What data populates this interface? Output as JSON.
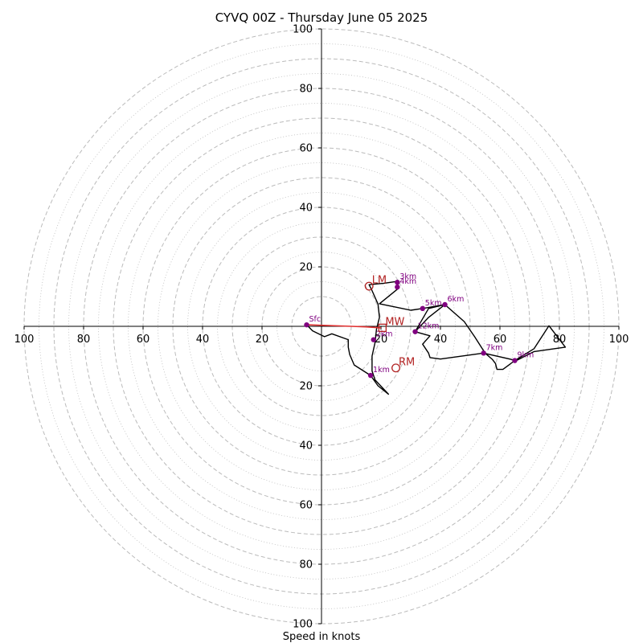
{
  "chart_data": {
    "type": "scatter",
    "title": "CYVQ 00Z - Thursday June 05 2025",
    "xlabel": "Speed in knots",
    "xlim": [
      -100,
      100
    ],
    "ylim": [
      -100,
      100
    ],
    "grid": true,
    "ticks": {
      "x": [
        {
          "v": -100,
          "label": "100"
        },
        {
          "v": -80,
          "label": "80"
        },
        {
          "v": -60,
          "label": "60"
        },
        {
          "v": -40,
          "label": "40"
        },
        {
          "v": -20,
          "label": "20"
        },
        {
          "v": 20,
          "label": "20"
        },
        {
          "v": 40,
          "label": "40"
        },
        {
          "v": 60,
          "label": "60"
        },
        {
          "v": 80,
          "label": "80"
        },
        {
          "v": 100,
          "label": "100"
        }
      ],
      "y": [
        {
          "v": 100,
          "label": "100"
        },
        {
          "v": 80,
          "label": "80"
        },
        {
          "v": 60,
          "label": "60"
        },
        {
          "v": 40,
          "label": "40"
        },
        {
          "v": 20,
          "label": "20"
        },
        {
          "v": -20,
          "label": "20"
        },
        {
          "v": -40,
          "label": "40"
        },
        {
          "v": -60,
          "label": "60"
        },
        {
          "v": -80,
          "label": "80"
        },
        {
          "v": -100,
          "label": "100"
        }
      ]
    },
    "rings_dashed": [
      10,
      20,
      30,
      40,
      50,
      60,
      70,
      80,
      90,
      100
    ],
    "rings_dotted": [
      15,
      25,
      35,
      45,
      55,
      65,
      75,
      85,
      95
    ],
    "series": [
      {
        "color": "#000000",
        "points": [
          [
            -5,
            0.5
          ],
          [
            -3,
            -1.5
          ],
          [
            1,
            -3.5
          ],
          [
            3.5,
            -2.5
          ],
          [
            9,
            -4.5
          ],
          [
            9,
            -7
          ],
          [
            9.5,
            -9.5
          ],
          [
            11,
            -13
          ],
          [
            16.5,
            -16.5
          ],
          [
            19,
            -20
          ],
          [
            22.5,
            -22.8
          ],
          [
            18,
            -18
          ],
          [
            17,
            -15
          ],
          [
            17,
            -10
          ],
          [
            18,
            -5.5
          ],
          [
            18.5,
            -1
          ],
          [
            19.5,
            3
          ],
          [
            19,
            7.5
          ],
          [
            17,
            12
          ],
          [
            16,
            14
          ],
          [
            21,
            14.5
          ],
          [
            26,
            15.2
          ],
          [
            25.6,
            14.2
          ],
          [
            25.6,
            13.2
          ],
          [
            25.5,
            12.5
          ],
          [
            19.5,
            7.6
          ],
          [
            30,
            5.4
          ],
          [
            34,
            6
          ],
          [
            41.5,
            7.3
          ],
          [
            36,
            3
          ],
          [
            31.5,
            -1.8
          ],
          [
            36,
            6
          ],
          [
            41.5,
            7.3
          ],
          [
            48,
            1.6
          ],
          [
            51.5,
            -3.5
          ],
          [
            55,
            -9
          ],
          [
            57.5,
            -11.2
          ],
          [
            58.5,
            -12.5
          ],
          [
            59,
            -14.5
          ],
          [
            61,
            -14.5
          ],
          [
            65,
            -11.5
          ],
          [
            71.5,
            -7.5
          ],
          [
            76.5,
            0.2
          ],
          [
            82,
            -7
          ],
          [
            71.5,
            -8.5
          ],
          [
            65.5,
            -11.5
          ],
          [
            54.5,
            -9
          ],
          [
            40,
            -11
          ],
          [
            36.5,
            -10.5
          ],
          [
            36,
            -9
          ],
          [
            34,
            -6
          ],
          [
            36.5,
            -3.2
          ],
          [
            31.5,
            -1.8
          ]
        ]
      },
      {
        "color": "#e03030",
        "points": [
          [
            -5,
            0.5
          ],
          [
            10,
            0
          ],
          [
            15,
            -0.2
          ],
          [
            20,
            -0.5
          ]
        ]
      }
    ],
    "levels": [
      {
        "label": "Sfc",
        "x": -5,
        "y": 0.5
      },
      {
        "label": "1km",
        "x": 16.5,
        "y": -16.5
      },
      {
        "label": "2km",
        "x": 17.5,
        "y": -4.5
      },
      {
        "label": "3km",
        "x": 25.5,
        "y": 14.8
      },
      {
        "label": "4km",
        "x": 25.5,
        "y": 13.2
      },
      {
        "label": "5km",
        "x": 34,
        "y": 6
      },
      {
        "label": "6km",
        "x": 41.5,
        "y": 7.3
      },
      {
        "label": "7km",
        "x": 54.5,
        "y": -9
      },
      {
        "label": "9km",
        "x": 65,
        "y": -11.5
      },
      {
        "label": "12km",
        "x": 31.5,
        "y": -1.8
      }
    ],
    "storm_motion": [
      {
        "label": "LM",
        "x": 16,
        "y": 13.5,
        "marker": "circle"
      },
      {
        "label": "MW",
        "x": 20.5,
        "y": -0.5,
        "marker": "square"
      },
      {
        "label": "RM",
        "x": 25,
        "y": -14,
        "marker": "circle"
      }
    ],
    "colors": {
      "hodograph": "#000000",
      "surface_segment": "#e03030",
      "level_marker": "#800080",
      "storm_motion": "#b22222",
      "grid": "#bbbbbb"
    }
  }
}
